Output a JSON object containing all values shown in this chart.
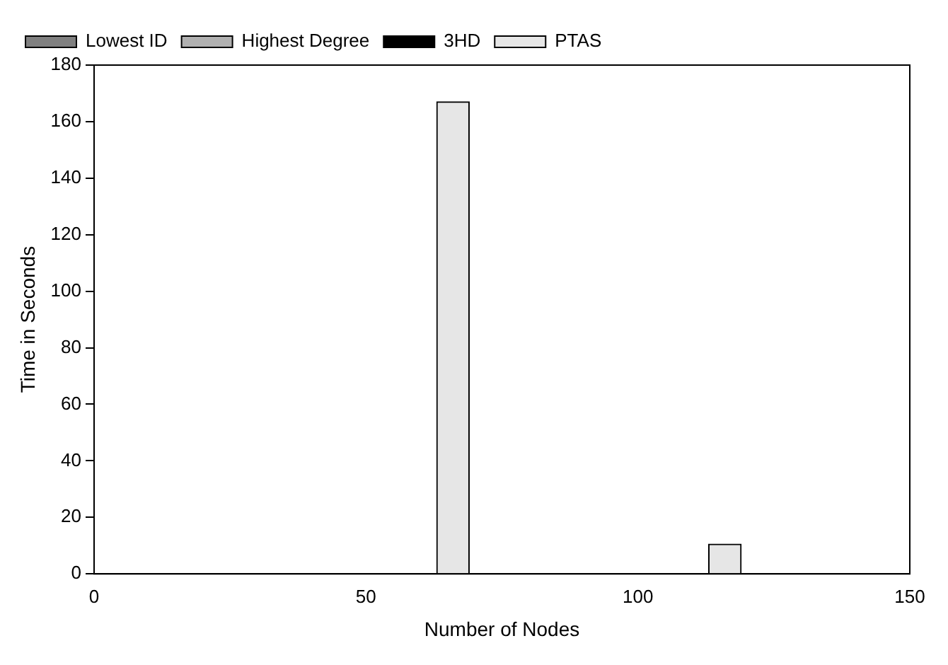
{
  "chart_data": {
    "type": "bar",
    "xlabel": "Number of Nodes",
    "ylabel": "Time in Seconds",
    "xlim": [
      0,
      150
    ],
    "xticks": [
      0,
      50,
      100,
      150
    ],
    "ylim": [
      0,
      180
    ],
    "yticks": [
      0,
      20,
      40,
      60,
      80,
      100,
      120,
      140,
      160,
      180
    ],
    "grid": false,
    "legend": "top left",
    "series": [
      {
        "name": "Lowest ID",
        "color": "#808080",
        "x": [
          48,
          98
        ],
        "values": [
          0,
          0
        ]
      },
      {
        "name": "Highest Degree",
        "color": "#b0b0b0",
        "x": [
          54,
          104
        ],
        "values": [
          0,
          0
        ]
      },
      {
        "name": "3HD",
        "color": "#000000",
        "x": [
          60,
          110
        ],
        "values": [
          0,
          0
        ]
      },
      {
        "name": "PTAS",
        "color": "#e6e6e6",
        "x": [
          66,
          116
        ],
        "values": [
          167,
          10.5
        ]
      }
    ]
  }
}
